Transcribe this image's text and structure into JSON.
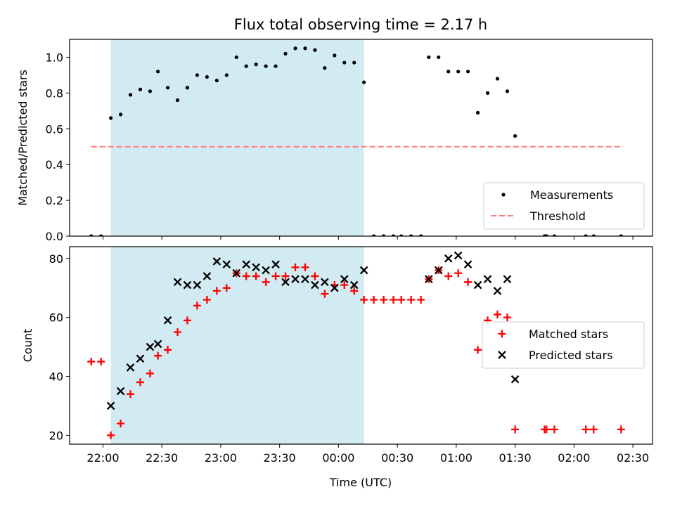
{
  "figure": {
    "title": "Flux total observing time = 2.17 h",
    "xlabel": "Time (UTC)"
  },
  "colors": {
    "shade": "#add8e6",
    "measurement": "#000000",
    "threshold": "#ff7f7f",
    "matched": "#ff0000",
    "predicted": "#000000"
  },
  "chart_data": [
    {
      "type": "scatter",
      "name": "ratio-panel",
      "ylabel": "Matched/Predicted stars",
      "xlim": [
        "21:43",
        "02:40"
      ],
      "ylim": [
        0,
        1.1
      ],
      "x_ticks": [
        "22:00",
        "22:30",
        "23:00",
        "23:30",
        "00:00",
        "00:30",
        "01:00",
        "01:30",
        "02:00",
        "02:30"
      ],
      "y_ticks": [
        "0.0",
        "0.2",
        "0.4",
        "0.6",
        "0.8",
        "1.0"
      ],
      "shaded_span": [
        "22:04",
        "00:13"
      ],
      "threshold": {
        "name": "Threshold",
        "value": 0.5,
        "x": [
          "21:54",
          "02:25"
        ],
        "style": "dashed"
      },
      "legend": {
        "position": "lower-right",
        "entries": [
          "Measurements",
          "Threshold"
        ]
      },
      "series": [
        {
          "name": "Measurements",
          "marker": "dot",
          "points": [
            [
              "21:54",
              0.0
            ],
            [
              "21:59",
              0.0
            ],
            [
              "22:04",
              0.66
            ],
            [
              "22:09",
              0.68
            ],
            [
              "22:14",
              0.79
            ],
            [
              "22:19",
              0.82
            ],
            [
              "22:24",
              0.81
            ],
            [
              "22:28",
              0.92
            ],
            [
              "22:33",
              0.83
            ],
            [
              "22:38",
              0.76
            ],
            [
              "22:43",
              0.83
            ],
            [
              "22:48",
              0.9
            ],
            [
              "22:53",
              0.89
            ],
            [
              "22:58",
              0.87
            ],
            [
              "23:03",
              0.9
            ],
            [
              "23:08",
              1.0
            ],
            [
              "23:13",
              0.95
            ],
            [
              "23:18",
              0.96
            ],
            [
              "23:23",
              0.95
            ],
            [
              "23:28",
              0.95
            ],
            [
              "23:33",
              1.02
            ],
            [
              "23:38",
              1.05
            ],
            [
              "23:43",
              1.05
            ],
            [
              "23:48",
              1.04
            ],
            [
              "23:53",
              0.94
            ],
            [
              "23:58",
              1.01
            ],
            [
              "00:03",
              0.97
            ],
            [
              "00:08",
              0.97
            ],
            [
              "00:13",
              0.86
            ],
            [
              "00:18",
              0.0
            ],
            [
              "00:23",
              0.0
            ],
            [
              "00:28",
              0.0
            ],
            [
              "00:32",
              0.0
            ],
            [
              "00:37",
              0.0
            ],
            [
              "00:42",
              0.0
            ],
            [
              "00:46",
              1.0
            ],
            [
              "00:51",
              1.0
            ],
            [
              "00:56",
              0.92
            ],
            [
              "01:01",
              0.92
            ],
            [
              "01:06",
              0.92
            ],
            [
              "01:11",
              0.69
            ],
            [
              "01:16",
              0.8
            ],
            [
              "01:21",
              0.88
            ],
            [
              "01:26",
              0.81
            ],
            [
              "01:30",
              0.56
            ],
            [
              "01:45",
              0.0
            ],
            [
              "01:46",
              0.0
            ],
            [
              "01:50",
              0.0
            ],
            [
              "02:06",
              0.0
            ],
            [
              "02:10",
              0.0
            ],
            [
              "02:24",
              0.0
            ]
          ]
        }
      ]
    },
    {
      "type": "scatter",
      "name": "count-panel",
      "ylabel": "Count",
      "xlabel": "Time (UTC)",
      "xlim": [
        "21:43",
        "02:40"
      ],
      "ylim": [
        17,
        84
      ],
      "x_ticks": [
        "22:00",
        "22:30",
        "23:00",
        "23:30",
        "00:00",
        "00:30",
        "01:00",
        "01:30",
        "02:00",
        "02:30"
      ],
      "y_ticks": [
        "20",
        "40",
        "60",
        "80"
      ],
      "shaded_span": [
        "22:04",
        "00:13"
      ],
      "legend": {
        "position": "center-right",
        "entries": [
          "Matched stars",
          "Predicted stars"
        ]
      },
      "series": [
        {
          "name": "Matched stars",
          "marker": "plus",
          "points": [
            [
              "21:54",
              45
            ],
            [
              "21:59",
              45
            ],
            [
              "22:04",
              20
            ],
            [
              "22:09",
              24
            ],
            [
              "22:14",
              34
            ],
            [
              "22:19",
              38
            ],
            [
              "22:24",
              41
            ],
            [
              "22:28",
              47
            ],
            [
              "22:33",
              49
            ],
            [
              "22:38",
              55
            ],
            [
              "22:43",
              59
            ],
            [
              "22:48",
              64
            ],
            [
              "22:53",
              66
            ],
            [
              "22:58",
              69
            ],
            [
              "23:03",
              70
            ],
            [
              "23:08",
              75
            ],
            [
              "23:13",
              74
            ],
            [
              "23:18",
              74
            ],
            [
              "23:23",
              72
            ],
            [
              "23:28",
              74
            ],
            [
              "23:33",
              74
            ],
            [
              "23:38",
              77
            ],
            [
              "23:43",
              77
            ],
            [
              "23:48",
              74
            ],
            [
              "23:53",
              68
            ],
            [
              "23:58",
              71
            ],
            [
              "00:03",
              71
            ],
            [
              "00:08",
              69
            ],
            [
              "00:13",
              66
            ],
            [
              "00:18",
              66
            ],
            [
              "00:23",
              66
            ],
            [
              "00:28",
              66
            ],
            [
              "00:32",
              66
            ],
            [
              "00:37",
              66
            ],
            [
              "00:42",
              66
            ],
            [
              "00:46",
              73
            ],
            [
              "00:51",
              76
            ],
            [
              "00:56",
              74
            ],
            [
              "01:01",
              75
            ],
            [
              "01:06",
              72
            ],
            [
              "01:11",
              49
            ],
            [
              "01:16",
              59
            ],
            [
              "01:21",
              61
            ],
            [
              "01:26",
              60
            ],
            [
              "01:30",
              22
            ],
            [
              "01:45",
              22
            ],
            [
              "01:46",
              22
            ],
            [
              "01:50",
              22
            ],
            [
              "02:06",
              22
            ],
            [
              "02:10",
              22
            ],
            [
              "02:24",
              22
            ]
          ]
        },
        {
          "name": "Predicted stars",
          "marker": "x",
          "points": [
            [
              "22:04",
              30
            ],
            [
              "22:09",
              35
            ],
            [
              "22:14",
              43
            ],
            [
              "22:19",
              46
            ],
            [
              "22:24",
              50
            ],
            [
              "22:28",
              51
            ],
            [
              "22:33",
              59
            ],
            [
              "22:38",
              72
            ],
            [
              "22:43",
              71
            ],
            [
              "22:48",
              71
            ],
            [
              "22:53",
              74
            ],
            [
              "22:58",
              79
            ],
            [
              "23:03",
              78
            ],
            [
              "23:08",
              75
            ],
            [
              "23:13",
              78
            ],
            [
              "23:18",
              77
            ],
            [
              "23:23",
              76
            ],
            [
              "23:28",
              78
            ],
            [
              "23:33",
              72
            ],
            [
              "23:38",
              73
            ],
            [
              "23:43",
              73
            ],
            [
              "23:48",
              71
            ],
            [
              "23:53",
              72
            ],
            [
              "23:58",
              70
            ],
            [
              "00:03",
              73
            ],
            [
              "00:08",
              71
            ],
            [
              "00:13",
              76
            ],
            [
              "00:46",
              73
            ],
            [
              "00:51",
              76
            ],
            [
              "00:56",
              80
            ],
            [
              "01:01",
              81
            ],
            [
              "01:06",
              78
            ],
            [
              "01:11",
              71
            ],
            [
              "01:16",
              73
            ],
            [
              "01:21",
              69
            ],
            [
              "01:26",
              73
            ],
            [
              "01:30",
              39
            ]
          ]
        }
      ]
    }
  ]
}
